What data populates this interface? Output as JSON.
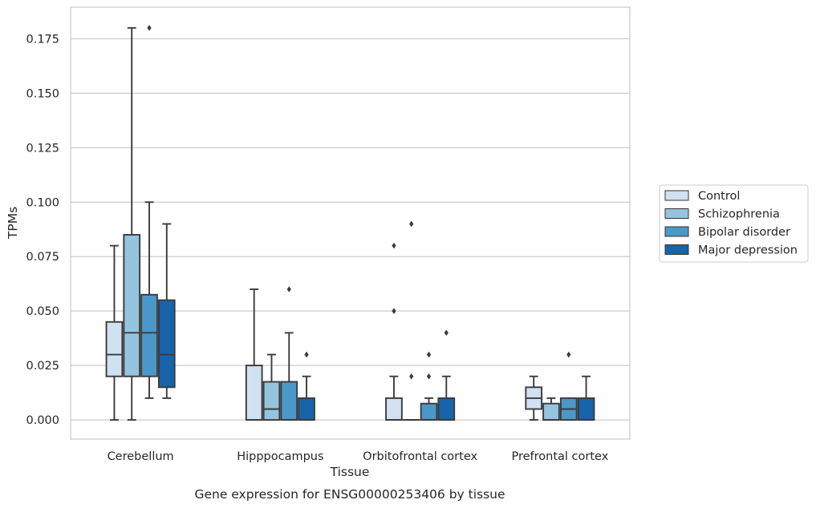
{
  "chart_data": {
    "type": "box",
    "xlabel": "Tissue",
    "ylabel": "TPMs",
    "caption": "Gene expression for ENSG00000253406 by tissue",
    "ylim": [
      -0.0088,
      0.1895
    ],
    "yticks": [
      "0.000",
      "0.025",
      "0.050",
      "0.075",
      "0.100",
      "0.125",
      "0.150",
      "0.175"
    ],
    "grid": "horizontal",
    "legend_position": "right",
    "categories": [
      "Cerebellum",
      "Hipppocampus",
      "Orbitofrontal cortex",
      "Prefrontal cortex"
    ],
    "series": [
      {
        "name": "Control",
        "color": "#d0e1f2",
        "boxes": [
          {
            "whislo": 0.0,
            "q1": 0.02,
            "med": 0.03,
            "q3": 0.045,
            "whishi": 0.08,
            "fliers": []
          },
          {
            "whislo": 0.0,
            "q1": 0.0,
            "med": 0.0,
            "q3": 0.025,
            "whishi": 0.06,
            "fliers": []
          },
          {
            "whislo": 0.0,
            "q1": 0.0,
            "med": 0.0,
            "q3": 0.01,
            "whishi": 0.02,
            "fliers": [
              0.05,
              0.08
            ]
          },
          {
            "whislo": 0.0,
            "q1": 0.005,
            "med": 0.01,
            "q3": 0.015,
            "whishi": 0.02,
            "fliers": []
          }
        ]
      },
      {
        "name": "Schizophrenia",
        "color": "#94c4df",
        "boxes": [
          {
            "whislo": 0.0,
            "q1": 0.02,
            "med": 0.04,
            "q3": 0.085,
            "whishi": 0.18,
            "fliers": []
          },
          {
            "whislo": 0.0,
            "q1": 0.0,
            "med": 0.005,
            "q3": 0.0175,
            "whishi": 0.03,
            "fliers": []
          },
          {
            "whislo": 0.0,
            "q1": 0.0,
            "med": 0.0,
            "q3": 0.0,
            "whishi": 0.0,
            "fliers": [
              0.02,
              0.09
            ]
          },
          {
            "whislo": 0.0,
            "q1": 0.0,
            "med": 0.0,
            "q3": 0.0075,
            "whishi": 0.01,
            "fliers": []
          }
        ]
      },
      {
        "name": "Bipolar disorder",
        "color": "#4a98c9",
        "boxes": [
          {
            "whislo": 0.01,
            "q1": 0.02,
            "med": 0.04,
            "q3": 0.0575,
            "whishi": 0.1,
            "fliers": [
              0.18
            ]
          },
          {
            "whislo": 0.0,
            "q1": 0.0,
            "med": 0.0,
            "q3": 0.0175,
            "whishi": 0.04,
            "fliers": [
              0.06
            ]
          },
          {
            "whislo": 0.0,
            "q1": 0.0,
            "med": 0.0,
            "q3": 0.0075,
            "whishi": 0.01,
            "fliers": [
              0.02,
              0.03
            ]
          },
          {
            "whislo": 0.0,
            "q1": 0.0,
            "med": 0.005,
            "q3": 0.01,
            "whishi": 0.01,
            "fliers": [
              0.03
            ]
          }
        ]
      },
      {
        "name": "Major depression",
        "color": "#1764ab",
        "boxes": [
          {
            "whislo": 0.01,
            "q1": 0.015,
            "med": 0.03,
            "q3": 0.055,
            "whishi": 0.09,
            "fliers": []
          },
          {
            "whislo": 0.0,
            "q1": 0.0,
            "med": 0.0,
            "q3": 0.01,
            "whishi": 0.02,
            "fliers": [
              0.03
            ]
          },
          {
            "whislo": 0.0,
            "q1": 0.0,
            "med": 0.0,
            "q3": 0.01,
            "whishi": 0.02,
            "fliers": [
              0.04
            ]
          },
          {
            "whislo": 0.0,
            "q1": 0.0,
            "med": 0.0,
            "q3": 0.01,
            "whishi": 0.02,
            "fliers": []
          }
        ]
      }
    ]
  }
}
